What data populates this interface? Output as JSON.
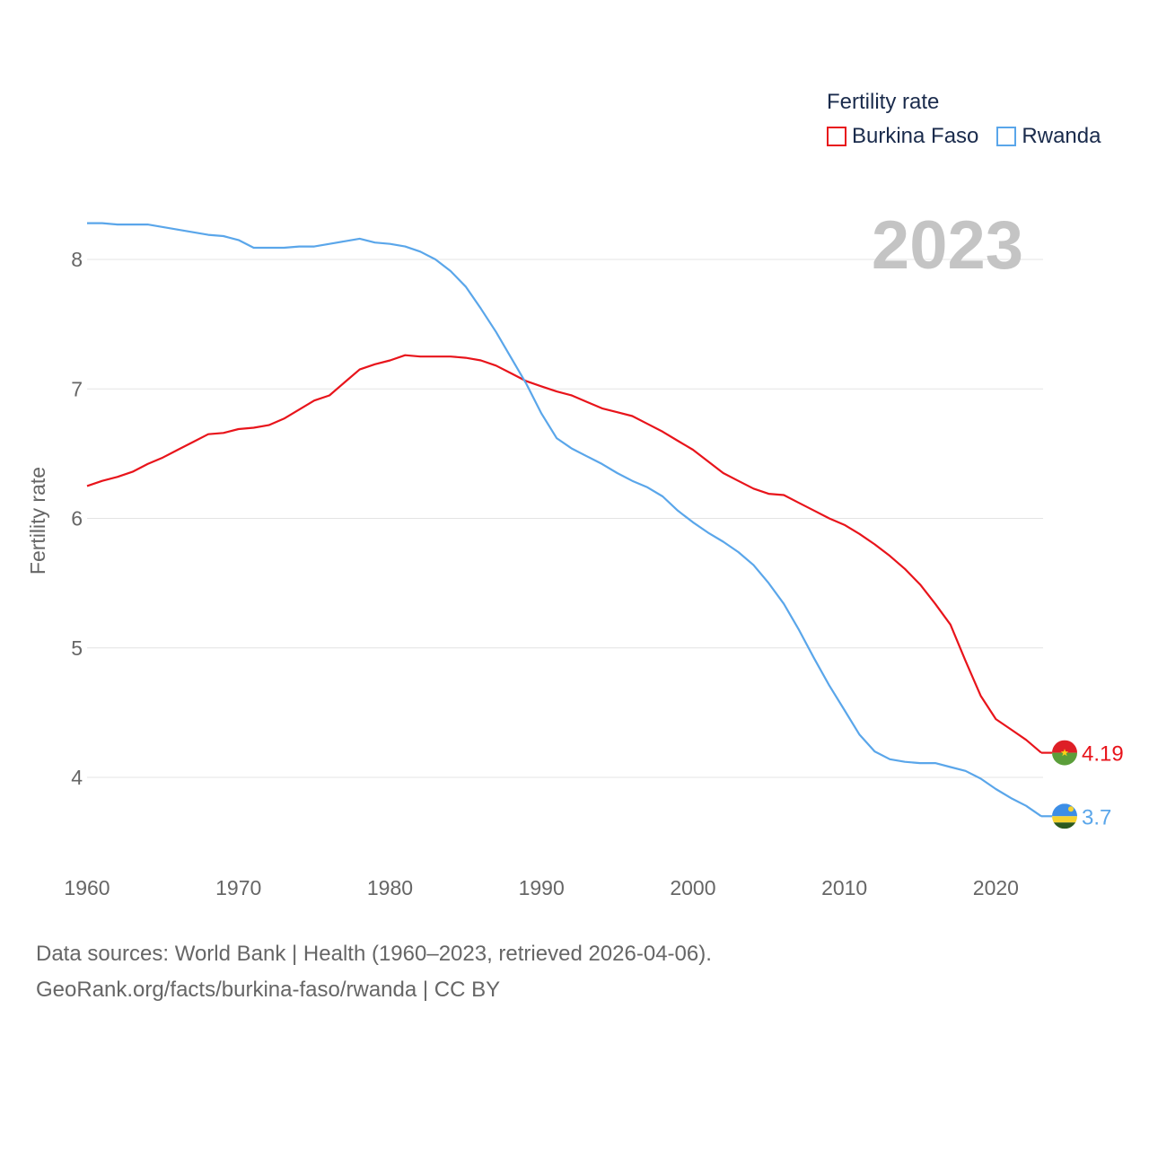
{
  "legend": {
    "title": "Fertility rate"
  },
  "year_label": "2023",
  "footer": {
    "line1": "Data sources: World Bank | Health (1960–2023, retrieved 2026-04-06).",
    "line2": "GeoRank.org/facts/burkina-faso/rwanda | CC BY"
  },
  "chart_data": {
    "type": "line",
    "title": "",
    "ylabel": "Fertility rate",
    "xlabel": "",
    "xlim": [
      1960,
      2023
    ],
    "ylim": [
      3.5,
      8.55
    ],
    "x_ticks": [
      1960,
      1970,
      1980,
      1990,
      2000,
      2010,
      2020
    ],
    "y_ticks": [
      4,
      5,
      6,
      7,
      8
    ],
    "grid": true,
    "legend_position": "top-right",
    "x": [
      1960,
      1961,
      1962,
      1963,
      1964,
      1965,
      1966,
      1967,
      1968,
      1969,
      1970,
      1971,
      1972,
      1973,
      1974,
      1975,
      1976,
      1977,
      1978,
      1979,
      1980,
      1981,
      1982,
      1983,
      1984,
      1985,
      1986,
      1987,
      1988,
      1989,
      1990,
      1991,
      1992,
      1993,
      1994,
      1995,
      1996,
      1997,
      1998,
      1999,
      2000,
      2001,
      2002,
      2003,
      2004,
      2005,
      2006,
      2007,
      2008,
      2009,
      2010,
      2011,
      2012,
      2013,
      2014,
      2015,
      2016,
      2017,
      2018,
      2019,
      2020,
      2021,
      2022,
      2023
    ],
    "series": [
      {
        "name": "Burkina Faso",
        "color": "#e8141b",
        "end_label": "4.19",
        "flag": "burkina-faso-flag-icon",
        "values": [
          6.25,
          6.29,
          6.32,
          6.36,
          6.42,
          6.47,
          6.53,
          6.59,
          6.65,
          6.66,
          6.69,
          6.7,
          6.72,
          6.77,
          6.84,
          6.91,
          6.95,
          7.05,
          7.15,
          7.19,
          7.22,
          7.26,
          7.25,
          7.25,
          7.25,
          7.24,
          7.22,
          7.18,
          7.12,
          7.06,
          7.02,
          6.98,
          6.95,
          6.9,
          6.85,
          6.82,
          6.79,
          6.73,
          6.67,
          6.6,
          6.53,
          6.44,
          6.35,
          6.29,
          6.23,
          6.19,
          6.18,
          6.12,
          6.06,
          6.0,
          5.95,
          5.88,
          5.8,
          5.71,
          5.61,
          5.49,
          5.34,
          5.18,
          4.9,
          4.63,
          4.45,
          4.37,
          4.29,
          4.19
        ]
      },
      {
        "name": "Rwanda",
        "color": "#5aa6ea",
        "end_label": "3.7",
        "flag": "rwanda-flag-icon",
        "values": [
          8.28,
          8.28,
          8.27,
          8.27,
          8.27,
          8.25,
          8.23,
          8.21,
          8.19,
          8.18,
          8.15,
          8.09,
          8.09,
          8.09,
          8.1,
          8.1,
          8.12,
          8.14,
          8.16,
          8.13,
          8.12,
          8.1,
          8.06,
          8.0,
          7.91,
          7.79,
          7.62,
          7.44,
          7.24,
          7.04,
          6.81,
          6.62,
          6.54,
          6.48,
          6.42,
          6.35,
          6.29,
          6.24,
          6.17,
          6.06,
          5.97,
          5.89,
          5.82,
          5.74,
          5.64,
          5.5,
          5.34,
          5.14,
          4.92,
          4.71,
          4.52,
          4.33,
          4.2,
          4.14,
          4.12,
          4.11,
          4.11,
          4.08,
          4.05,
          3.99,
          3.91,
          3.84,
          3.78,
          3.7
        ]
      }
    ]
  }
}
